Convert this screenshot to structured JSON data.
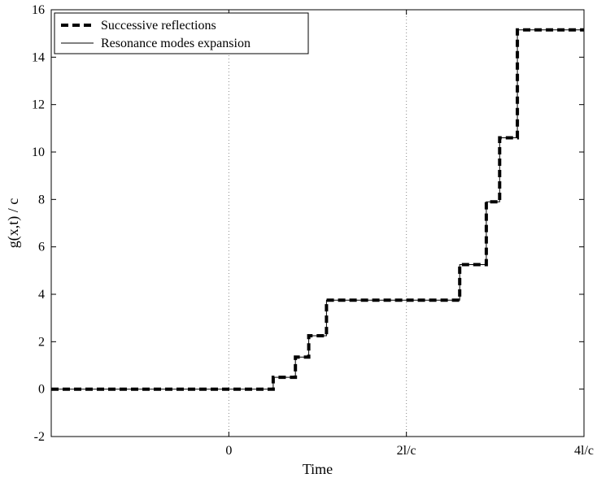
{
  "chart_data": {
    "type": "line",
    "title": "",
    "xlabel": "Time",
    "ylabel": "g(x,t) / c",
    "xlim": [
      -2,
      4
    ],
    "ylim": [
      -2,
      16
    ],
    "x_unit": "l/c",
    "x_ticks": [
      {
        "value": 0,
        "label": "0"
      },
      {
        "value": 2,
        "label": "2l/c"
      },
      {
        "value": 4,
        "label": "4l/c"
      }
    ],
    "y_ticks": [
      -2,
      0,
      2,
      4,
      6,
      8,
      10,
      12,
      14,
      16
    ],
    "vertical_gridlines_at": [
      0,
      2,
      4
    ],
    "grid": "dotted vertical lines",
    "legend_position": "top-left",
    "series": [
      {
        "name": "Successive reflections",
        "style": "thick dashed",
        "color": "#000000",
        "x": [
          -2.0,
          0.5,
          0.5,
          0.75,
          0.75,
          0.9,
          0.9,
          1.1,
          1.1,
          1.25,
          1.25,
          1.5,
          1.5,
          2.6,
          2.6,
          2.9,
          2.9,
          3.05,
          3.05,
          3.25,
          3.25,
          3.45,
          3.45,
          4.0
        ],
        "y": [
          0.0,
          0.0,
          0.5,
          0.5,
          1.35,
          1.35,
          2.25,
          2.25,
          3.75,
          3.75,
          3.75,
          3.75,
          3.75,
          3.75,
          5.25,
          5.25,
          7.9,
          7.9,
          10.6,
          10.6,
          15.15,
          15.15,
          15.15,
          15.15
        ]
      },
      {
        "name": "Resonance modes expansion",
        "style": "thin solid",
        "color": "#000000",
        "x": [
          -2.0,
          0.5,
          0.5,
          0.75,
          0.75,
          0.9,
          0.9,
          1.1,
          1.1,
          1.25,
          1.25,
          2.6,
          2.6,
          2.9,
          2.9,
          3.05,
          3.05,
          3.25,
          3.25,
          3.45,
          3.45,
          4.0
        ],
        "y": [
          0.0,
          0.0,
          0.5,
          0.5,
          1.35,
          1.35,
          2.25,
          2.25,
          3.75,
          3.75,
          3.75,
          3.75,
          5.25,
          5.25,
          7.9,
          7.9,
          10.6,
          10.6,
          15.15,
          15.15,
          15.15,
          15.15
        ]
      }
    ]
  }
}
